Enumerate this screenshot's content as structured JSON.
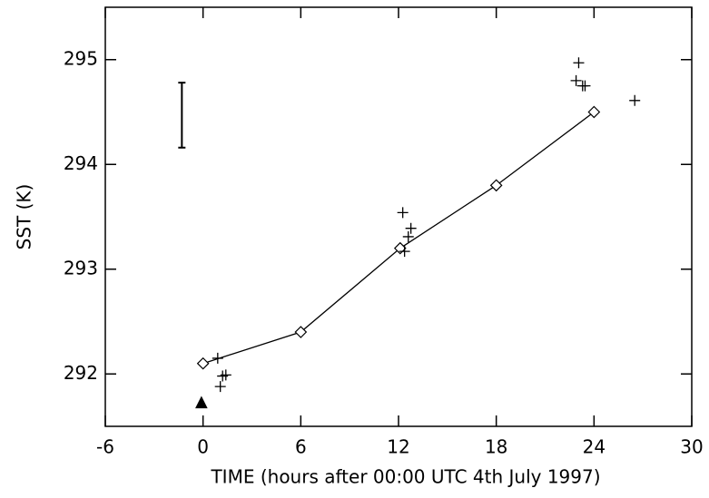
{
  "chart_data": {
    "type": "line",
    "x_label": "TIME (hours after 00:00 UTC 4th July 1997)",
    "y_label": "SST (K)",
    "xlim": [
      -6,
      30
    ],
    "xticks": [
      -6,
      0,
      6,
      12,
      18,
      24,
      30
    ],
    "ylim": [
      291.5,
      295.5
    ],
    "yticks": [
      292,
      293,
      294,
      295
    ],
    "series": [
      {
        "marker": "diamond",
        "line": true,
        "color": "#000000",
        "x": [
          0,
          6,
          12.1,
          18,
          24
        ],
        "values": [
          292.1,
          292.4,
          293.2,
          293.8,
          294.5
        ]
      },
      {
        "marker": "plus",
        "line": false,
        "color": "#000000",
        "x": [
          0.9,
          1.06,
          1.2,
          1.4,
          12.26,
          12.37,
          12.6,
          12.76,
          23.06,
          22.9,
          23.3,
          23.45,
          26.5
        ],
        "values": [
          292.15,
          291.88,
          291.98,
          291.99,
          293.54,
          293.17,
          293.31,
          293.39,
          294.97,
          294.8,
          294.75,
          294.75,
          294.61
        ]
      },
      {
        "marker": "triangle",
        "line": false,
        "color": "#000000",
        "x": [
          -0.1
        ],
        "values": [
          291.72
        ]
      },
      {
        "marker": "errorbar",
        "line": false,
        "color": "#000000",
        "x": [
          -1.3
        ],
        "values": [
          294.47
        ],
        "errors": [
          0.31
        ]
      }
    ]
  }
}
